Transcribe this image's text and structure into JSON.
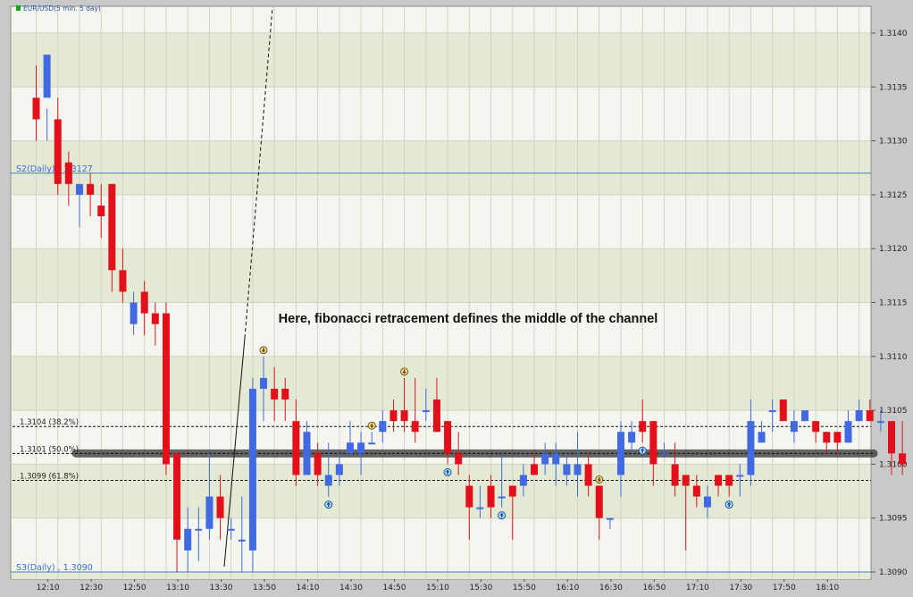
{
  "chart_data": {
    "type": "candlestick",
    "title": "EUR/USD(5 min.  5 day)",
    "ylim": [
      1.3089,
      1.3143
    ],
    "y_ticks": [
      "1.3090",
      "1.3095",
      "1.3100",
      "1.3105",
      "1.3110",
      "1.3115",
      "1.3120",
      "1.3125",
      "1.3130",
      "1.3135",
      "1.3140"
    ],
    "x_ticks": [
      "12:10",
      "12:30",
      "12:50",
      "13:10",
      "13:30",
      "13:50",
      "14:10",
      "14:30",
      "14:50",
      "15:10",
      "15:30",
      "15:50",
      "16:10",
      "16:30",
      "16:50",
      "17:10",
      "17:30",
      "17:50",
      "18:10"
    ],
    "annotation": "Here, fibonacci retracement defines the middle of the channel",
    "pivot_lines": [
      {
        "label": "S2(Daily) , 1.3127",
        "value": 1.3127
      },
      {
        "label": "S3(Daily) , 1.3090",
        "value": 1.309
      }
    ],
    "fib_levels": [
      {
        "label": "1.3104 (38.2%)",
        "value": 1.31035
      },
      {
        "label": "1.3101 (50.0%)",
        "value": 1.3101
      },
      {
        "label": "1.3099 (61.8%)",
        "value": 1.30985
      }
    ],
    "candles": [
      [
        1.3134,
        1.3132,
        1.3137,
        1.313
      ],
      [
        1.3134,
        1.3138,
        1.313,
        1.3133
      ],
      [
        1.3132,
        1.3126,
        1.3134,
        1.3125
      ],
      [
        1.3128,
        1.3126,
        1.3129,
        1.3124
      ],
      [
        1.3125,
        1.3126,
        1.3126,
        1.3122
      ],
      [
        1.3126,
        1.3125,
        1.3127,
        1.3123
      ],
      [
        1.3124,
        1.3123,
        1.3126,
        1.3121
      ],
      [
        1.3126,
        1.3118,
        1.3126,
        1.3116
      ],
      [
        1.3118,
        1.3116,
        1.312,
        1.3115
      ],
      [
        1.3113,
        1.3115,
        1.3116,
        1.3112
      ],
      [
        1.3116,
        1.3114,
        1.3117,
        1.3112
      ],
      [
        1.3114,
        1.3113,
        1.3115,
        1.3111
      ],
      [
        1.3114,
        1.31,
        1.3115,
        1.3099
      ],
      [
        1.3101,
        1.3093,
        1.3101,
        1.309
      ],
      [
        1.3092,
        1.3094,
        1.3096,
        1.309
      ],
      [
        1.3094,
        1.3094,
        1.3096,
        1.3091
      ],
      [
        1.3094,
        1.3097,
        1.3101,
        1.3093
      ],
      [
        1.3097,
        1.3095,
        1.3099,
        1.3093
      ],
      [
        1.3094,
        1.3094,
        1.3095,
        1.3093
      ],
      [
        1.3093,
        1.3093,
        1.3097,
        1.309
      ],
      [
        1.3092,
        1.3107,
        1.3108,
        1.309
      ],
      [
        1.3107,
        1.3108,
        1.311,
        1.3104
      ],
      [
        1.3107,
        1.3106,
        1.3109,
        1.3104
      ],
      [
        1.3107,
        1.3106,
        1.3108,
        1.3104
      ],
      [
        1.3104,
        1.3099,
        1.3106,
        1.3098
      ],
      [
        1.3099,
        1.3103,
        1.3104,
        1.3099
      ],
      [
        1.3101,
        1.3099,
        1.3102,
        1.3098
      ],
      [
        1.3098,
        1.3099,
        1.3102,
        1.3097
      ],
      [
        1.3099,
        1.31,
        1.3101,
        1.3098
      ],
      [
        1.3101,
        1.3102,
        1.3104,
        1.3101
      ],
      [
        1.3101,
        1.3102,
        1.3103,
        1.3099
      ],
      [
        1.3102,
        1.3102,
        1.3103,
        1.3102
      ],
      [
        1.3103,
        1.3104,
        1.3105,
        1.3102
      ],
      [
        1.3105,
        1.3104,
        1.3106,
        1.3103
      ],
      [
        1.3105,
        1.3104,
        1.3108,
        1.3103
      ],
      [
        1.3104,
        1.3103,
        1.3108,
        1.3102
      ],
      [
        1.3105,
        1.3105,
        1.3107,
        1.3104
      ],
      [
        1.3106,
        1.3103,
        1.3108,
        1.3103
      ],
      [
        1.3104,
        1.3101,
        1.3104,
        1.31
      ],
      [
        1.3101,
        1.31,
        1.3103,
        1.3099
      ],
      [
        1.3098,
        1.3096,
        1.3099,
        1.3093
      ],
      [
        1.3096,
        1.3096,
        1.3098,
        1.3095
      ],
      [
        1.3098,
        1.3096,
        1.3099,
        1.3095
      ],
      [
        1.3097,
        1.3097,
        1.3101,
        1.3096
      ],
      [
        1.3098,
        1.3097,
        1.3098,
        1.3093
      ],
      [
        1.3098,
        1.3099,
        1.31,
        1.3097
      ],
      [
        1.31,
        1.3099,
        1.3101,
        1.3099
      ],
      [
        1.31,
        1.3101,
        1.3102,
        1.3099
      ],
      [
        1.31,
        1.3101,
        1.3102,
        1.3098
      ],
      [
        1.3099,
        1.31,
        1.3101,
        1.3098
      ],
      [
        1.3099,
        1.31,
        1.3103,
        1.3097
      ],
      [
        1.31,
        1.3098,
        1.3101,
        1.3097
      ],
      [
        1.3098,
        1.3095,
        1.3098,
        1.3093
      ],
      [
        1.3095,
        1.3095,
        1.3095,
        1.3094
      ],
      [
        1.3099,
        1.3103,
        1.3104,
        1.3097
      ],
      [
        1.3102,
        1.3103,
        1.3104,
        1.3101
      ],
      [
        1.3104,
        1.3103,
        1.3106,
        1.3102
      ],
      [
        1.3104,
        1.31,
        1.3104,
        1.3098
      ],
      [
        1.3101,
        1.3101,
        1.3102,
        1.3101
      ],
      [
        1.31,
        1.3098,
        1.3102,
        1.3097
      ],
      [
        1.3099,
        1.3098,
        1.3099,
        1.3092
      ],
      [
        1.3098,
        1.3097,
        1.3099,
        1.3096
      ],
      [
        1.3096,
        1.3097,
        1.3098,
        1.3095
      ],
      [
        1.3099,
        1.3098,
        1.3099,
        1.3097
      ],
      [
        1.3099,
        1.3098,
        1.3099,
        1.3097
      ],
      [
        1.3099,
        1.3099,
        1.31,
        1.3097
      ],
      [
        1.3099,
        1.3104,
        1.3106,
        1.3098
      ],
      [
        1.3102,
        1.3103,
        1.3104,
        1.3102
      ],
      [
        1.3105,
        1.3105,
        1.3106,
        1.3103
      ],
      [
        1.3106,
        1.3104,
        1.3106,
        1.3104
      ],
      [
        1.3103,
        1.3104,
        1.3105,
        1.3102
      ],
      [
        1.3104,
        1.3105,
        1.3105,
        1.3104
      ],
      [
        1.3104,
        1.3103,
        1.3104,
        1.3102
      ],
      [
        1.3103,
        1.3102,
        1.3103,
        1.3101
      ],
      [
        1.3103,
        1.3102,
        1.3103,
        1.3101
      ],
      [
        1.3102,
        1.3104,
        1.3105,
        1.3102
      ],
      [
        1.3104,
        1.3105,
        1.3106,
        1.3104
      ],
      [
        1.3105,
        1.3104,
        1.3106,
        1.3104
      ],
      [
        1.3104,
        1.3104,
        1.3105,
        1.3103
      ],
      [
        1.3104,
        1.3101,
        1.3104,
        1.3099
      ],
      [
        1.3101,
        1.31,
        1.3104,
        1.3099
      ]
    ],
    "bull_color": "#4169e1",
    "bear_color": "#e3101c",
    "up_arrow_candles": [
      27,
      38,
      43,
      56,
      64
    ],
    "down_arrow_candles": [
      21,
      31,
      34,
      52
    ]
  }
}
